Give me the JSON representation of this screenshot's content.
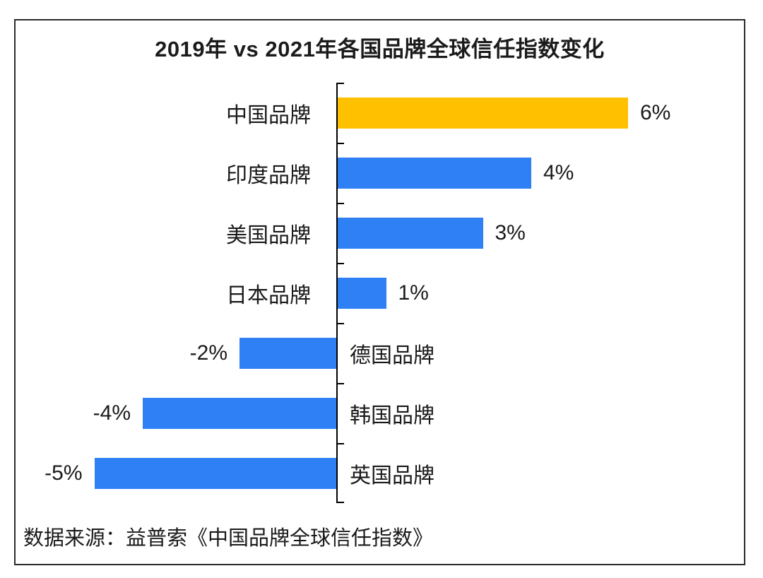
{
  "title": "2019年 vs 2021年各国品牌全球信任指数变化",
  "source": "数据来源：益普索《中国品牌全球信任指数》",
  "colors": {
    "highlight_bar": "#FFC000",
    "default_bar": "#2F80F5",
    "axis": "#000000",
    "text": "#1A1A1A",
    "frame_border": "#2B2B2B",
    "background": "#FFFFFF"
  },
  "chart_data": {
    "type": "bar",
    "orientation": "horizontal",
    "title": "2019年 vs 2021年各国品牌全球信任指数变化",
    "xlabel": "",
    "ylabel": "",
    "xlim": [
      -5,
      6
    ],
    "grid": false,
    "legend": false,
    "baseline": 0,
    "unit": "%",
    "categories": [
      "中国品牌",
      "印度品牌",
      "美国品牌",
      "日本品牌",
      "德国品牌",
      "韩国品牌",
      "英国品牌"
    ],
    "values": [
      6,
      4,
      3,
      1,
      -2,
      -4,
      -5
    ],
    "value_labels": [
      "6%",
      "4%",
      "3%",
      "1%",
      "-2%",
      "-4%",
      "-5%"
    ],
    "bar_colors": [
      "#FFC000",
      "#2F80F5",
      "#2F80F5",
      "#2F80F5",
      "#2F80F5",
      "#2F80F5",
      "#2F80F5"
    ],
    "annotation_note": "positive bars extend right of center axis with value label on right; negative bars extend left with value label on left and category label moved to right of axis"
  }
}
